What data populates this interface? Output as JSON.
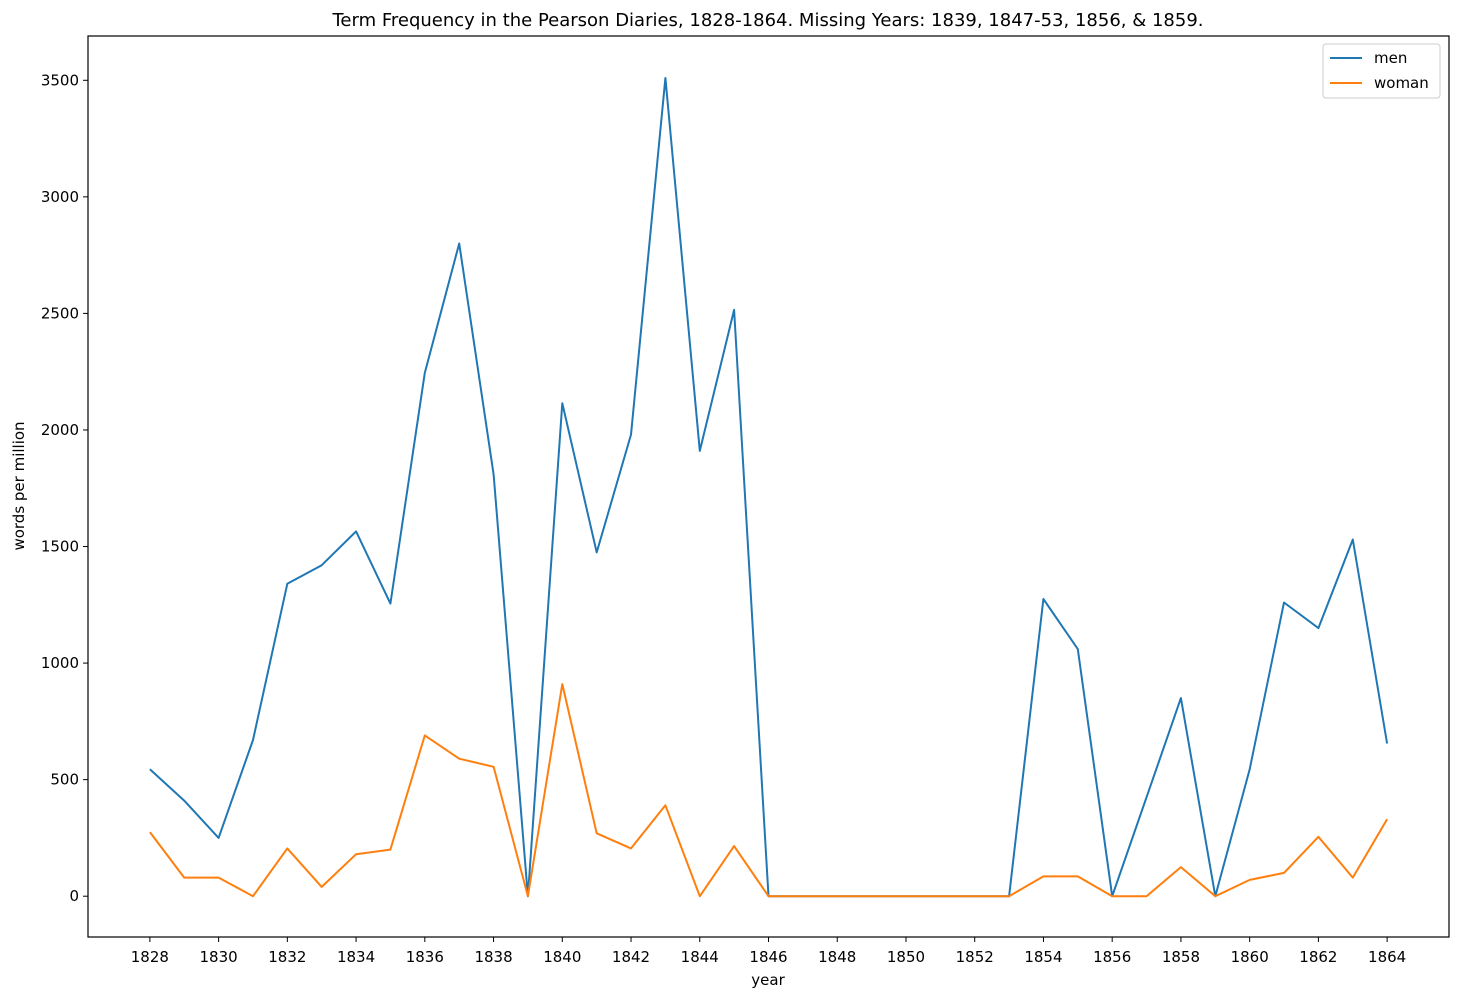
{
  "chart_data": {
    "type": "line",
    "title": "Term Frequency in the Pearson Diaries, 1828-1864. Missing Years: 1839, 1847-53, 1856, & 1859.",
    "xlabel": "year",
    "ylabel": "words per million",
    "xlim": [
      1826.2,
      1865.8
    ],
    "ylim": [
      -175,
      3690
    ],
    "x_ticks": [
      1828,
      1830,
      1832,
      1834,
      1836,
      1838,
      1840,
      1842,
      1844,
      1846,
      1848,
      1850,
      1852,
      1854,
      1856,
      1858,
      1860,
      1862,
      1864
    ],
    "y_ticks": [
      0,
      500,
      1000,
      1500,
      2000,
      2500,
      3000,
      3500
    ],
    "legend_position": "top-right",
    "grid": false,
    "x": [
      1828,
      1829,
      1830,
      1831,
      1832,
      1833,
      1834,
      1835,
      1836,
      1837,
      1838,
      1839,
      1840,
      1841,
      1842,
      1843,
      1844,
      1845,
      1846,
      1847,
      1848,
      1849,
      1850,
      1851,
      1852,
      1853,
      1854,
      1855,
      1856,
      1857,
      1858,
      1859,
      1860,
      1861,
      1862,
      1863,
      1864
    ],
    "series": [
      {
        "name": "men",
        "color": "#1f77b4",
        "values": [
          545,
          410,
          250,
          670,
          1340,
          1420,
          1565,
          1255,
          2245,
          2800,
          1810,
          0,
          2115,
          1475,
          1980,
          3510,
          1910,
          2515,
          0,
          0,
          0,
          0,
          0,
          0,
          0,
          0,
          1275,
          1060,
          0,
          425,
          850,
          0,
          545,
          1260,
          1150,
          1530,
          655
        ]
      },
      {
        "name": "woman",
        "color": "#ff7f0e",
        "values": [
          275,
          80,
          80,
          0,
          205,
          40,
          180,
          200,
          690,
          590,
          555,
          0,
          910,
          270,
          205,
          390,
          0,
          215,
          0,
          0,
          0,
          0,
          0,
          0,
          0,
          0,
          85,
          85,
          0,
          0,
          125,
          0,
          70,
          100,
          255,
          80,
          330
        ]
      }
    ]
  }
}
